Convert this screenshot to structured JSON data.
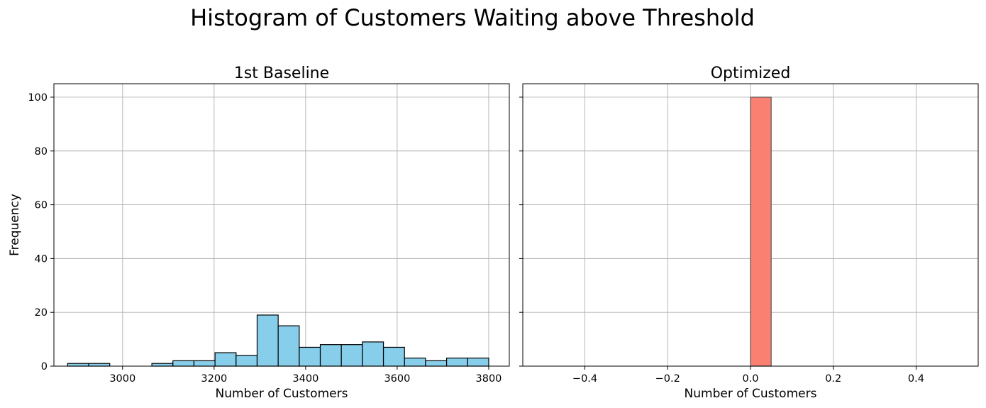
{
  "figure": {
    "suptitle": "Histogram of Customers Waiting above Threshold"
  },
  "chart_data": [
    {
      "type": "bar",
      "title": "1st Baseline",
      "xlabel": "Number of Customers",
      "ylabel": "Frequency",
      "xlim": [
        2850,
        3845
      ],
      "ylim": [
        0,
        105
      ],
      "xticks": [
        3000,
        3200,
        3400,
        3600,
        3800
      ],
      "yticks": [
        0,
        20,
        40,
        60,
        80,
        100
      ],
      "grid": true,
      "bar_color": "#87ceeb",
      "edge_color": "#000000",
      "bins": [
        {
          "x0": 2880,
          "x1": 2926,
          "count": 1
        },
        {
          "x0": 2926,
          "x1": 2972,
          "count": 1
        },
        {
          "x0": 2972,
          "x1": 3018,
          "count": 0
        },
        {
          "x0": 3018,
          "x1": 3064,
          "count": 0
        },
        {
          "x0": 3064,
          "x1": 3110,
          "count": 1
        },
        {
          "x0": 3110,
          "x1": 3156,
          "count": 2
        },
        {
          "x0": 3156,
          "x1": 3202,
          "count": 2
        },
        {
          "x0": 3202,
          "x1": 3248,
          "count": 5
        },
        {
          "x0": 3248,
          "x1": 3294,
          "count": 4
        },
        {
          "x0": 3294,
          "x1": 3340,
          "count": 19
        },
        {
          "x0": 3340,
          "x1": 3386,
          "count": 15
        },
        {
          "x0": 3386,
          "x1": 3432,
          "count": 7
        },
        {
          "x0": 3432,
          "x1": 3478,
          "count": 8
        },
        {
          "x0": 3478,
          "x1": 3524,
          "count": 8
        },
        {
          "x0": 3524,
          "x1": 3570,
          "count": 9
        },
        {
          "x0": 3570,
          "x1": 3616,
          "count": 7
        },
        {
          "x0": 3616,
          "x1": 3662,
          "count": 3
        },
        {
          "x0": 3662,
          "x1": 3708,
          "count": 2
        },
        {
          "x0": 3708,
          "x1": 3754,
          "count": 3
        },
        {
          "x0": 3754,
          "x1": 3800,
          "count": 3
        }
      ]
    },
    {
      "type": "bar",
      "title": "Optimized",
      "xlabel": "Number of Customers",
      "ylabel": "",
      "xlim": [
        -0.55,
        0.55
      ],
      "ylim": [
        0,
        105
      ],
      "xticks": [
        -0.4,
        -0.2,
        0.0,
        0.2,
        0.4
      ],
      "xtick_labels": [
        "−0.4",
        "−0.2",
        "0.0",
        "0.2",
        "0.4"
      ],
      "yticks": [
        0,
        20,
        40,
        60,
        80,
        100
      ],
      "grid": true,
      "bar_color": "#fa8072",
      "edge_color": "#555555",
      "bins": [
        {
          "x0": -0.5,
          "x1": -0.45,
          "count": 0
        },
        {
          "x0": -0.45,
          "x1": -0.4,
          "count": 0
        },
        {
          "x0": -0.4,
          "x1": -0.35,
          "count": 0
        },
        {
          "x0": -0.35,
          "x1": -0.3,
          "count": 0
        },
        {
          "x0": -0.3,
          "x1": -0.25,
          "count": 0
        },
        {
          "x0": -0.25,
          "x1": -0.2,
          "count": 0
        },
        {
          "x0": -0.2,
          "x1": -0.15,
          "count": 0
        },
        {
          "x0": -0.15,
          "x1": -0.1,
          "count": 0
        },
        {
          "x0": -0.1,
          "x1": -0.05,
          "count": 0
        },
        {
          "x0": -0.05,
          "x1": 0.0,
          "count": 0
        },
        {
          "x0": 0.0,
          "x1": 0.05,
          "count": 100
        },
        {
          "x0": 0.05,
          "x1": 0.1,
          "count": 0
        },
        {
          "x0": 0.1,
          "x1": 0.15,
          "count": 0
        },
        {
          "x0": 0.15,
          "x1": 0.2,
          "count": 0
        },
        {
          "x0": 0.2,
          "x1": 0.25,
          "count": 0
        },
        {
          "x0": 0.25,
          "x1": 0.3,
          "count": 0
        },
        {
          "x0": 0.3,
          "x1": 0.35,
          "count": 0
        },
        {
          "x0": 0.35,
          "x1": 0.4,
          "count": 0
        },
        {
          "x0": 0.4,
          "x1": 0.45,
          "count": 0
        },
        {
          "x0": 0.45,
          "x1": 0.5,
          "count": 0
        }
      ]
    }
  ]
}
